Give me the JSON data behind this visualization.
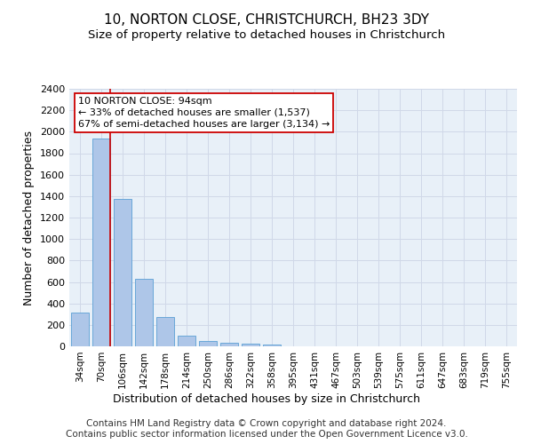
{
  "title": "10, NORTON CLOSE, CHRISTCHURCH, BH23 3DY",
  "subtitle": "Size of property relative to detached houses in Christchurch",
  "xlabel": "Distribution of detached houses by size in Christchurch",
  "ylabel": "Number of detached properties",
  "footer_line1": "Contains HM Land Registry data © Crown copyright and database right 2024.",
  "footer_line2": "Contains public sector information licensed under the Open Government Licence v3.0.",
  "bar_labels": [
    "34sqm",
    "70sqm",
    "106sqm",
    "142sqm",
    "178sqm",
    "214sqm",
    "250sqm",
    "286sqm",
    "322sqm",
    "358sqm",
    "395sqm",
    "431sqm",
    "467sqm",
    "503sqm",
    "539sqm",
    "575sqm",
    "611sqm",
    "647sqm",
    "683sqm",
    "719sqm",
    "755sqm"
  ],
  "bar_values": [
    315,
    1940,
    1375,
    630,
    275,
    100,
    48,
    32,
    28,
    20,
    0,
    0,
    0,
    0,
    0,
    0,
    0,
    0,
    0,
    0,
    0
  ],
  "bar_color": "#aec6e8",
  "bar_edgecolor": "#5a9fd4",
  "vline_color": "#cc0000",
  "vline_x": 1.425,
  "annotation_text": "10 NORTON CLOSE: 94sqm\n← 33% of detached houses are smaller (1,537)\n67% of semi-detached houses are larger (3,134) →",
  "annotation_box_facecolor": "#ffffff",
  "annotation_box_edgecolor": "#cc0000",
  "ylim": [
    0,
    2400
  ],
  "yticks": [
    0,
    200,
    400,
    600,
    800,
    1000,
    1200,
    1400,
    1600,
    1800,
    2000,
    2200,
    2400
  ],
  "grid_color": "#d0d8e8",
  "background_color": "#e8f0f8",
  "title_fontsize": 11,
  "subtitle_fontsize": 9.5,
  "ylabel_fontsize": 9,
  "xlabel_fontsize": 9,
  "tick_fontsize": 8,
  "annotation_fontsize": 8,
  "footer_fontsize": 7.5
}
